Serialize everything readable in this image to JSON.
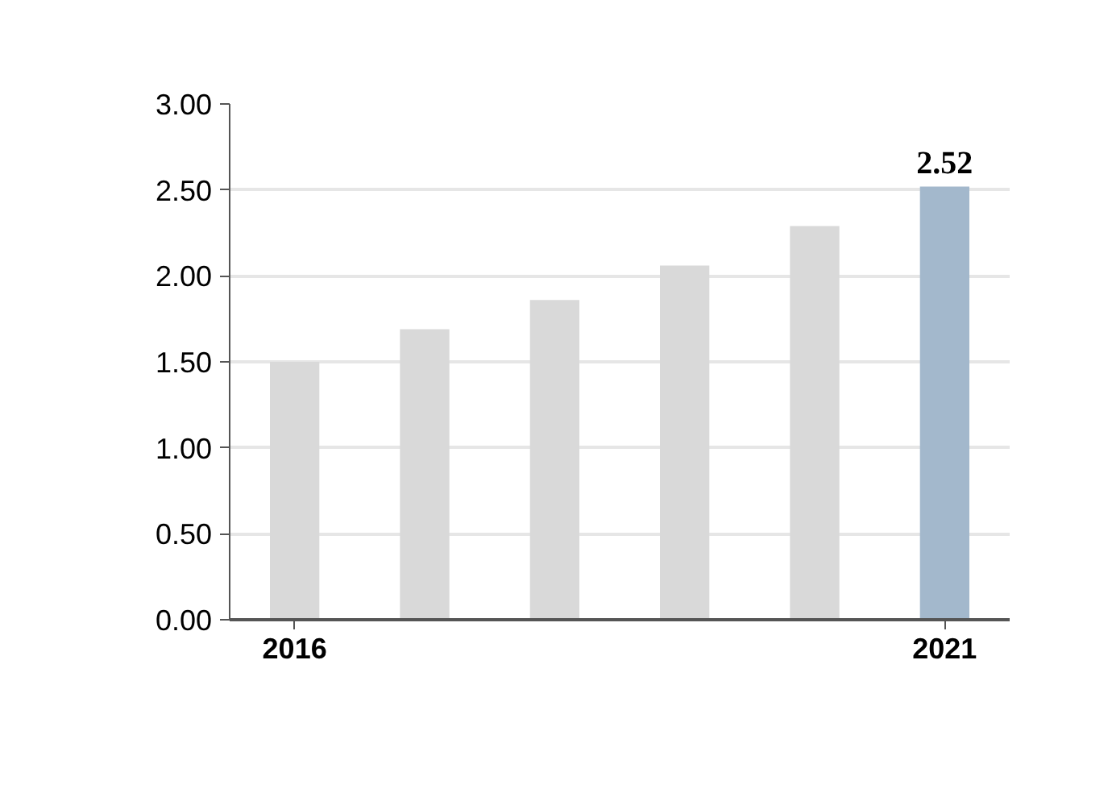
{
  "chart_data": {
    "type": "bar",
    "categories": [
      "2016",
      null,
      null,
      null,
      null,
      "2021"
    ],
    "values": [
      1.5,
      1.69,
      1.86,
      2.06,
      2.29,
      2.52
    ],
    "colors": [
      "#d9d9d9",
      "#d9d9d9",
      "#d9d9d9",
      "#d9d9d9",
      "#d9d9d9",
      "#a3b8cc"
    ],
    "value_labels": [
      null,
      null,
      null,
      null,
      null,
      "2.52"
    ],
    "ylim": [
      0,
      3
    ],
    "yticks": [
      {
        "value": 0,
        "label": "0.00"
      },
      {
        "value": 0.5,
        "label": "0.50"
      },
      {
        "value": 1,
        "label": "1.00"
      },
      {
        "value": 1.5,
        "label": "1.50"
      },
      {
        "value": 2,
        "label": "2.00"
      },
      {
        "value": 2.5,
        "label": "2.50"
      },
      {
        "value": 3,
        "label": "3.00"
      }
    ],
    "grid": "y"
  }
}
